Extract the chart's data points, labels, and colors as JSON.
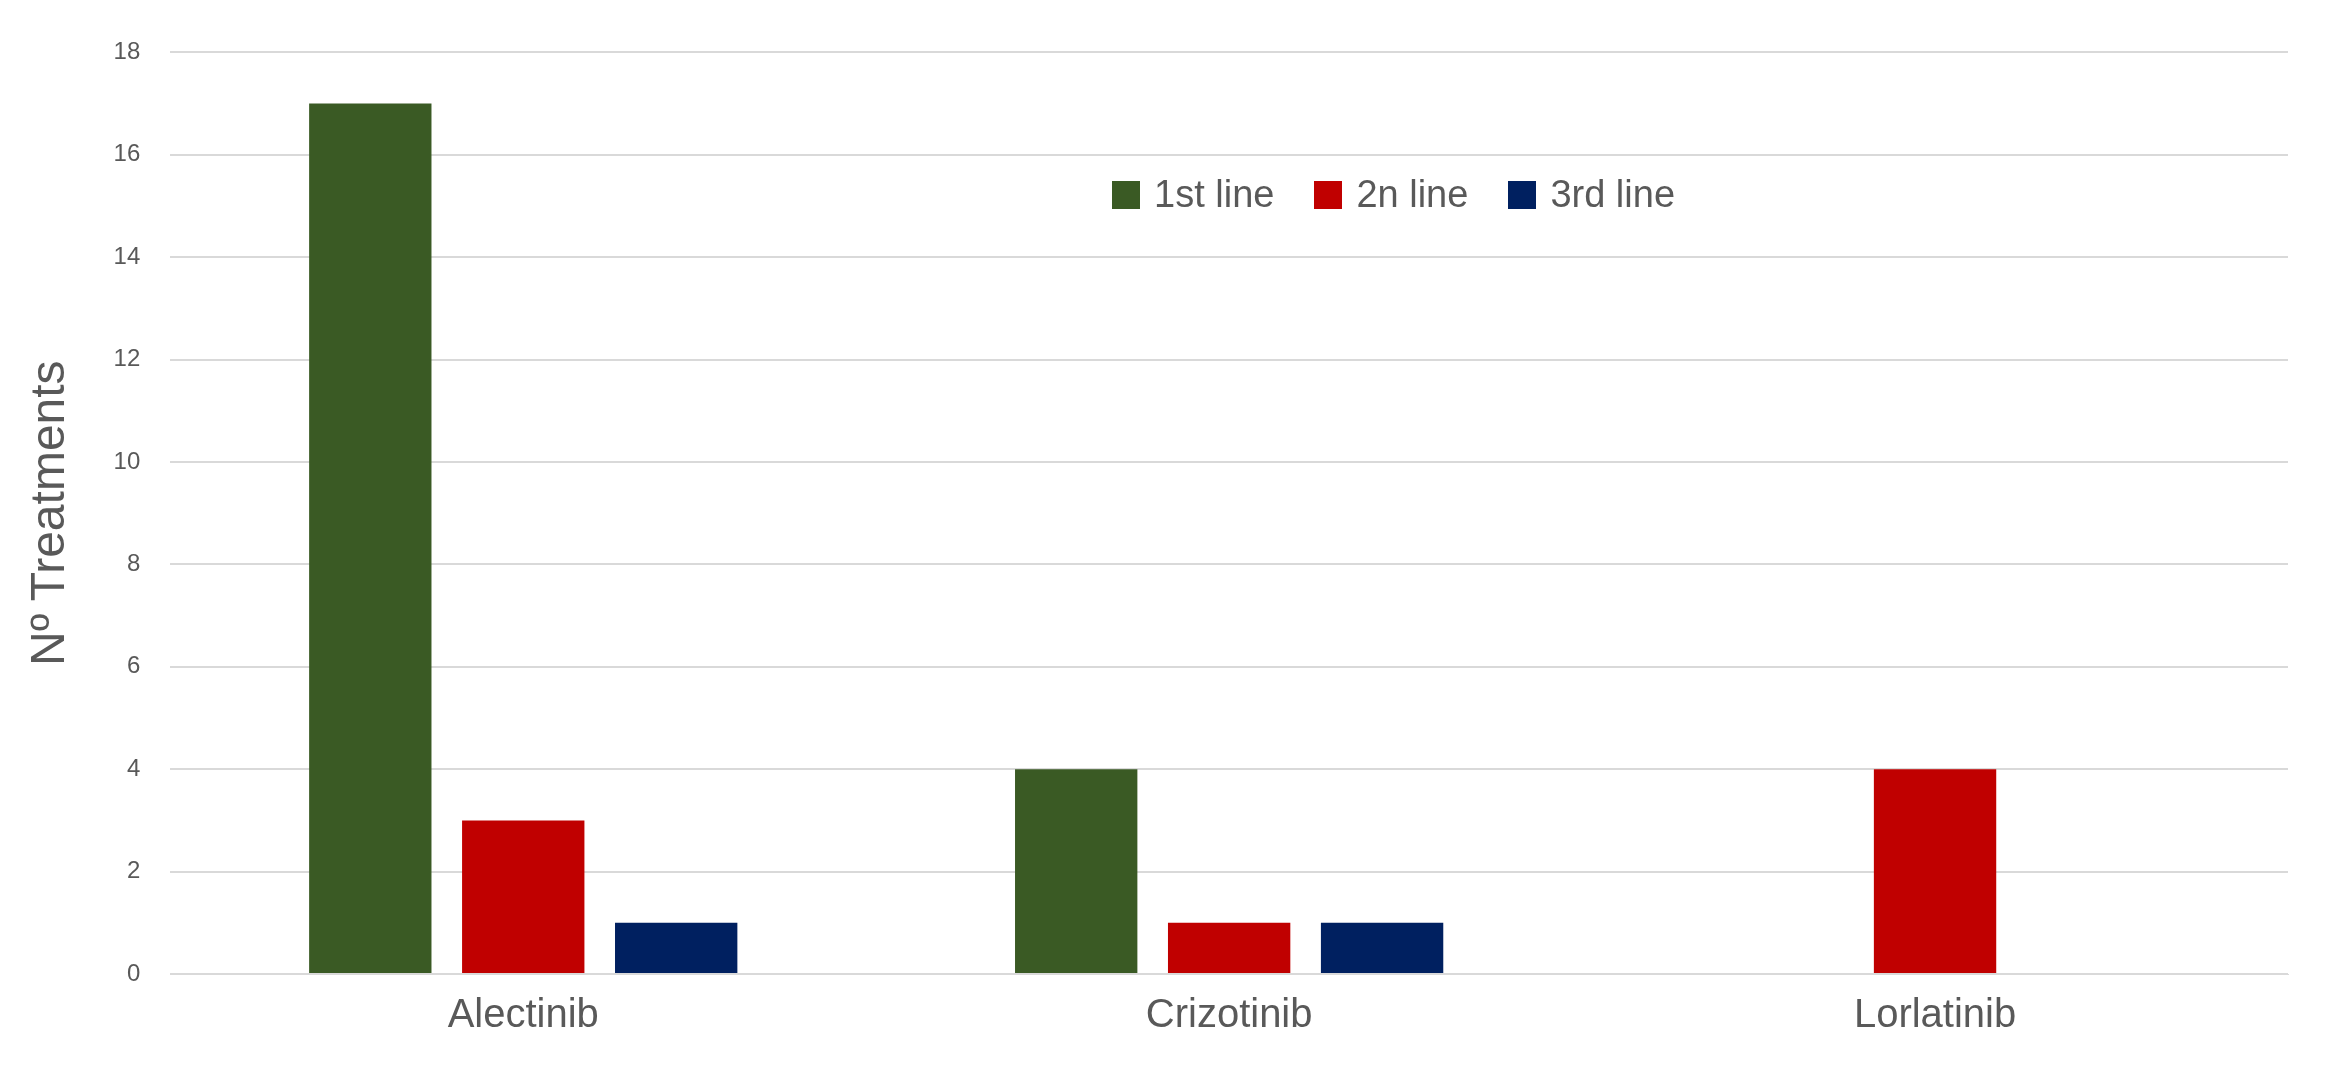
{
  "chart_data": {
    "type": "bar",
    "ylabel": "Nº Treatments",
    "categories": [
      "Alectinib",
      "Crizotinib",
      "Lorlatinib"
    ],
    "series": [
      {
        "name": "1st line",
        "color": "#3a5a24",
        "values": [
          17,
          4,
          0
        ]
      },
      {
        "name": "2n line",
        "color": "#c00000",
        "values": [
          3,
          1,
          4
        ]
      },
      {
        "name": "3rd line",
        "color": "#002060",
        "values": [
          1,
          1,
          0
        ]
      }
    ],
    "ylim": [
      0,
      18
    ],
    "yticks": [
      0,
      2,
      4,
      6,
      8,
      10,
      12,
      14,
      16,
      18
    ],
    "grid": "y",
    "legend": "top"
  }
}
